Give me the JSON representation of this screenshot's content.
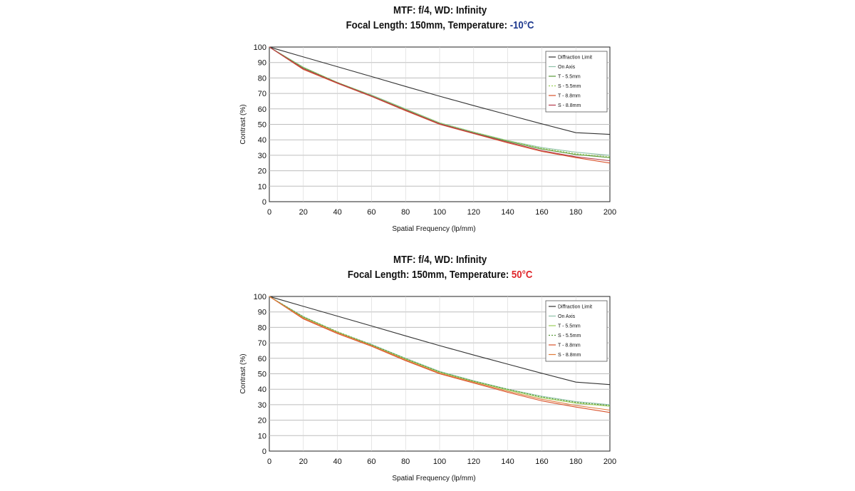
{
  "chart_data": [
    {
      "type": "line",
      "title_line1": "MTF: f/4, WD: Infinity",
      "title_line2_prefix": "Focal Length: 150mm, Temperature: ",
      "temperature": "-10°C",
      "temperature_color": "#1f3a8f",
      "xlabel": "Spatial Frequency (lp/mm)",
      "ylabel": "Contrast (%)",
      "xlim": [
        0,
        200
      ],
      "ylim": [
        0,
        100
      ],
      "xticks": [
        "0",
        "20",
        "40",
        "60",
        "80",
        "100",
        "120",
        "140",
        "160",
        "180",
        "200"
      ],
      "yticks": [
        "0",
        "10",
        "20",
        "30",
        "40",
        "50",
        "60",
        "70",
        "80",
        "90",
        "100"
      ],
      "legend_position": "top-right",
      "x": [
        0,
        20,
        40,
        60,
        80,
        100,
        120,
        140,
        160,
        180,
        200
      ],
      "series": [
        {
          "name": "Diffraction Limit",
          "color": "#333333",
          "dash": "",
          "values": [
            100,
            93.6,
            87.3,
            80.9,
            74.5,
            68.2,
            62.1,
            56.2,
            50.3,
            44.6,
            43.5
          ]
        },
        {
          "name": "On Axis",
          "color": "#8fc1a8",
          "dash": "",
          "values": [
            100,
            87,
            77,
            69,
            60,
            51,
            45,
            39.5,
            35,
            32,
            30
          ]
        },
        {
          "name": "T - 5.5mm",
          "color": "#5a9a3a",
          "dash": "",
          "values": [
            100,
            86.5,
            77,
            68.5,
            59.5,
            50.5,
            44.5,
            39,
            34,
            30.5,
            28.5
          ]
        },
        {
          "name": "S - 5.5mm",
          "color": "#9ccf5a",
          "dash": "2,2",
          "values": [
            100,
            86.8,
            77.2,
            68.8,
            59.8,
            51,
            45,
            39.5,
            34.5,
            31,
            29
          ]
        },
        {
          "name": "T - 8.8mm",
          "color": "#d9532c",
          "dash": "",
          "values": [
            100,
            85.5,
            76.5,
            68,
            58.8,
            50,
            44,
            38,
            32.5,
            28.5,
            25
          ]
        },
        {
          "name": "S - 8.8mm",
          "color": "#b33a4a",
          "dash": "",
          "values": [
            100,
            86,
            76.8,
            68.3,
            59.2,
            50.3,
            44.3,
            38.5,
            33,
            29,
            26.5
          ]
        }
      ]
    },
    {
      "type": "line",
      "title_line1": "MTF: f/4, WD: Infinity",
      "title_line2_prefix": "Focal Length: 150mm, Temperature: ",
      "temperature": "50°C",
      "temperature_color": "#e0262b",
      "xlabel": "Spatial Frequency (lp/mm)",
      "ylabel": "Contrast (%)",
      "xlim": [
        0,
        200
      ],
      "ylim": [
        0,
        100
      ],
      "xticks": [
        "0",
        "20",
        "40",
        "60",
        "80",
        "100",
        "120",
        "140",
        "160",
        "180",
        "200"
      ],
      "yticks": [
        "0",
        "10",
        "20",
        "30",
        "40",
        "50",
        "60",
        "70",
        "80",
        "90",
        "100"
      ],
      "legend_position": "top-right",
      "x": [
        0,
        20,
        40,
        60,
        80,
        100,
        120,
        140,
        160,
        180,
        200
      ],
      "series": [
        {
          "name": "Diffraction Limit",
          "color": "#333333",
          "dash": "",
          "values": [
            100,
            93.6,
            87.3,
            80.9,
            74.5,
            68.2,
            62.1,
            56.2,
            50.3,
            44.6,
            43
          ]
        },
        {
          "name": "On Axis",
          "color": "#8fc1a8",
          "dash": "",
          "values": [
            100,
            87,
            77,
            69,
            60,
            51.5,
            45.5,
            40,
            35.5,
            32,
            30
          ]
        },
        {
          "name": "T - 5.5mm",
          "color": "#9ccf5a",
          "dash": "",
          "values": [
            100,
            86.5,
            77,
            68.5,
            59.5,
            51,
            45,
            39.5,
            34.5,
            31,
            29
          ]
        },
        {
          "name": "S - 5.5mm",
          "color": "#5a9a3a",
          "dash": "2,2",
          "values": [
            100,
            86.8,
            77.2,
            68.8,
            59.8,
            51.2,
            45.2,
            40,
            35,
            31.5,
            29.5
          ]
        },
        {
          "name": "T - 8.8mm",
          "color": "#d9532c",
          "dash": "",
          "values": [
            100,
            85.5,
            76,
            67.8,
            58.5,
            50,
            44,
            38,
            32.5,
            28.5,
            25
          ]
        },
        {
          "name": "S - 8.8mm",
          "color": "#e07a3a",
          "dash": "",
          "values": [
            100,
            86,
            76.5,
            68.2,
            59,
            50.4,
            44.5,
            38.7,
            33.5,
            29.5,
            26.5
          ]
        }
      ]
    }
  ]
}
